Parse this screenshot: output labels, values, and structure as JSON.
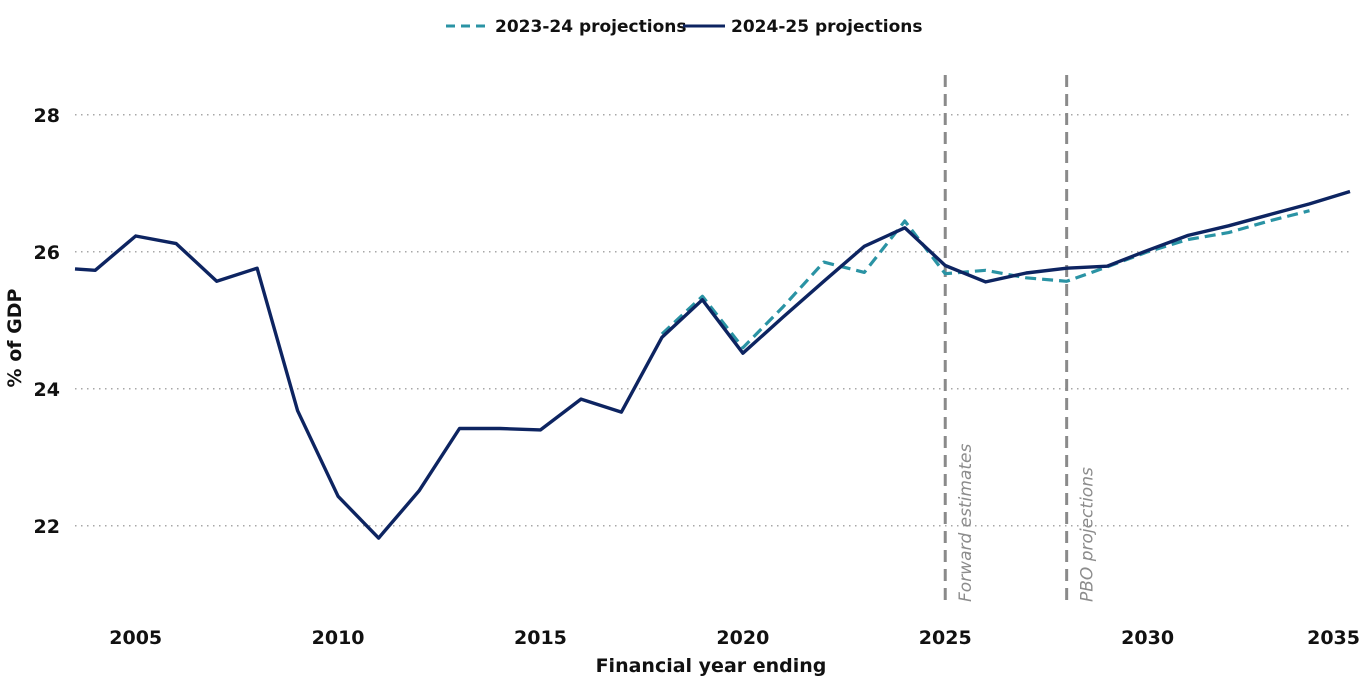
{
  "chart_data": {
    "type": "line",
    "title": "",
    "xlabel": "Financial year ending",
    "ylabel": "% of GDP",
    "xlim": [
      2003.5,
      2035
    ],
    "ylim": [
      20.8,
      28.8
    ],
    "x_ticks": [
      2005,
      2010,
      2015,
      2020,
      2025,
      2030,
      2035
    ],
    "y_ticks": [
      22,
      24,
      26,
      28
    ],
    "grid": "horizontal-dotted",
    "legend_position": "top-center",
    "series": [
      {
        "name": "2023-24 projections",
        "color": "#2a93a4",
        "style": "dashed",
        "x": [
          2018,
          2019,
          2020,
          2021,
          2022,
          2023,
          2024,
          2025,
          2026,
          2027,
          2028,
          2029,
          2030,
          2031,
          2032,
          2033,
          2034
        ],
        "y": [
          24.8,
          25.35,
          24.6,
          25.2,
          25.85,
          25.7,
          26.45,
          25.68,
          25.73,
          25.62,
          25.57,
          25.78,
          26.0,
          26.18,
          26.28,
          26.45,
          26.6
        ]
      },
      {
        "name": "2024-25 projections",
        "color": "#0d2461",
        "style": "solid",
        "x": [
          2003.5,
          2004,
          2005,
          2006,
          2007,
          2008,
          2009,
          2010,
          2011,
          2012,
          2013,
          2014,
          2015,
          2016,
          2017,
          2018,
          2019,
          2020,
          2021,
          2022,
          2023,
          2024,
          2025,
          2026,
          2027,
          2028,
          2029,
          2030,
          2031,
          2032,
          2033,
          2034,
          2035
        ],
        "y": [
          25.75,
          25.73,
          26.23,
          26.12,
          25.57,
          25.76,
          23.68,
          22.43,
          21.82,
          22.51,
          23.42,
          23.42,
          23.4,
          23.85,
          23.66,
          24.75,
          25.3,
          24.52,
          25.05,
          25.57,
          26.08,
          26.35,
          25.8,
          25.56,
          25.69,
          25.76,
          25.79,
          26.02,
          26.24,
          26.38,
          26.54,
          26.7,
          26.88
        ]
      }
    ],
    "vertical_markers": [
      {
        "x": 2025,
        "label": "Forward estimates"
      },
      {
        "x": 2028,
        "label": "PBO projections"
      }
    ]
  }
}
